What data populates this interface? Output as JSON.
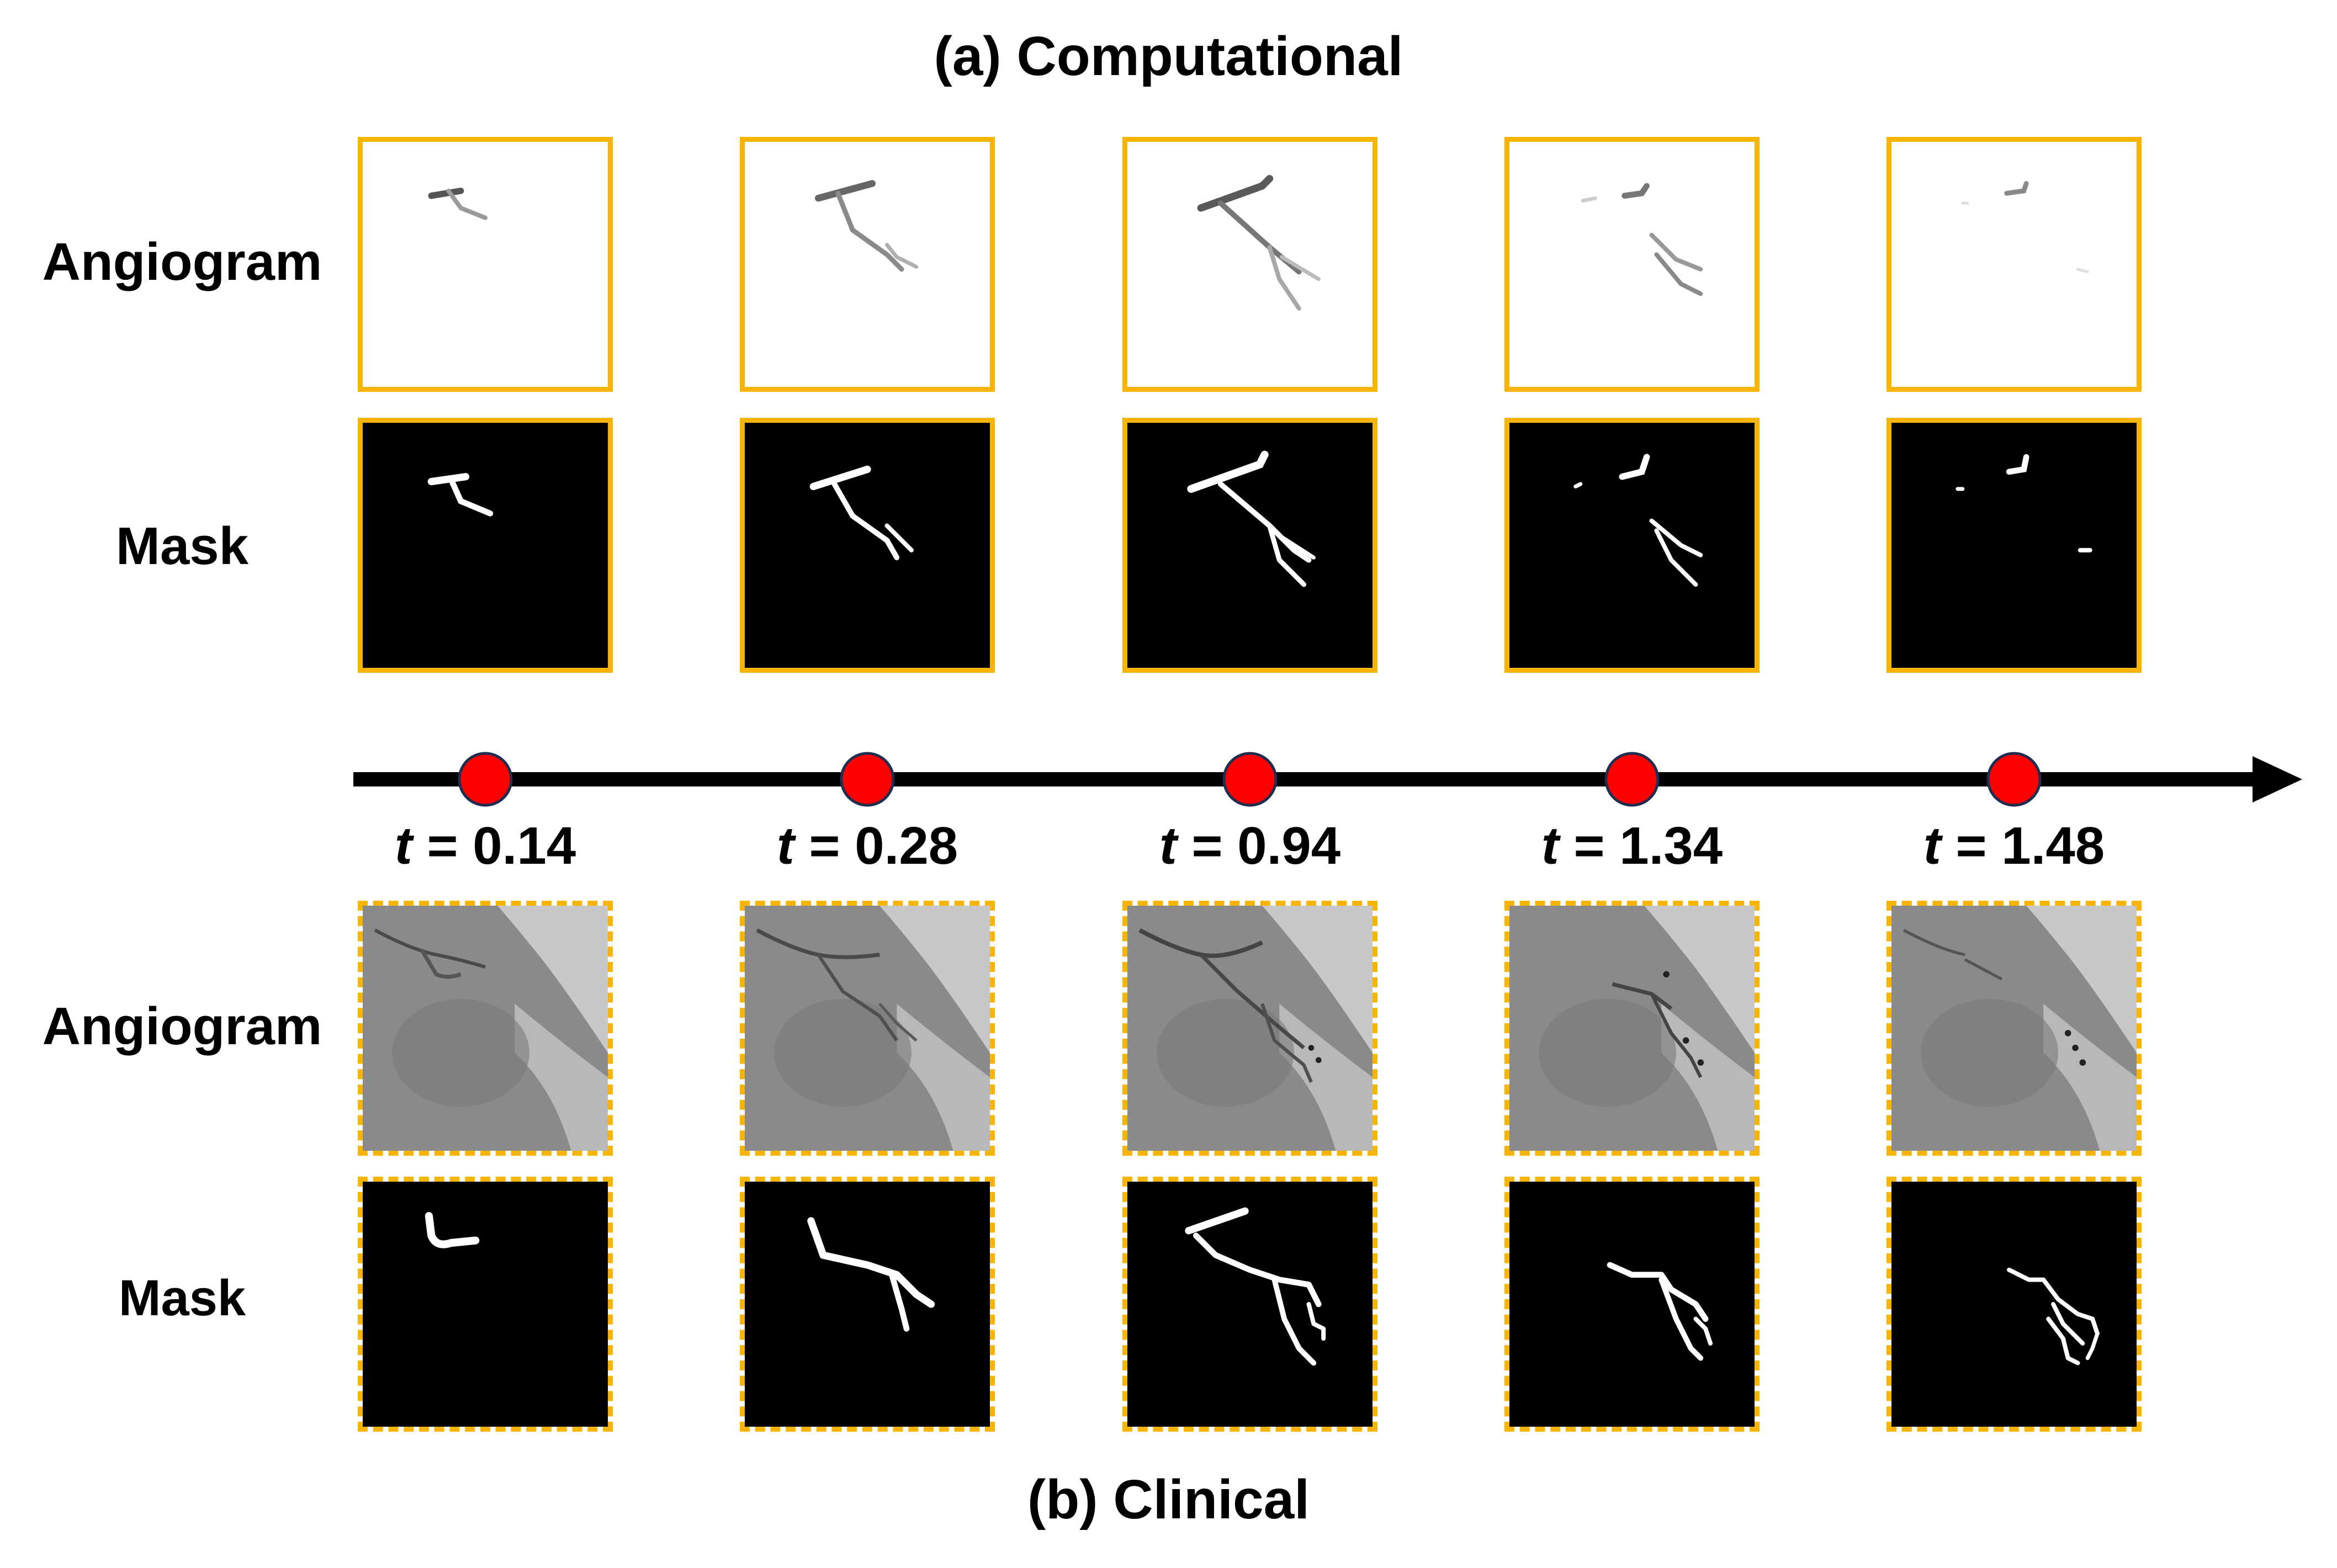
{
  "computational": {
    "title": "(a) Computational",
    "rows": [
      {
        "label": "Angiogram",
        "kind": "computational-angiogram"
      },
      {
        "label": "Mask",
        "kind": "computational-mask"
      }
    ]
  },
  "clinical": {
    "title": "(b) Clinical",
    "rows": [
      {
        "label": "Angiogram",
        "kind": "clinical-angiogram"
      },
      {
        "label": "Mask",
        "kind": "clinical-mask"
      }
    ]
  },
  "timeline": {
    "points": [
      {
        "var": "t",
        "sep": " = ",
        "value": "0.14"
      },
      {
        "var": "t",
        "sep": " = ",
        "value": "0.28"
      },
      {
        "var": "t",
        "sep": " = ",
        "value": "0.94"
      },
      {
        "var": "t",
        "sep": " = ",
        "value": "1.34"
      },
      {
        "var": "t",
        "sep": " = ",
        "value": "1.48"
      }
    ],
    "colors": {
      "line": "#000000",
      "dot": "#ff0000",
      "dot_stroke": "#1f2d4f"
    }
  },
  "colors": {
    "frame": "#f7b400",
    "mask_bg": "#000000",
    "vessel": "#ffffff"
  }
}
